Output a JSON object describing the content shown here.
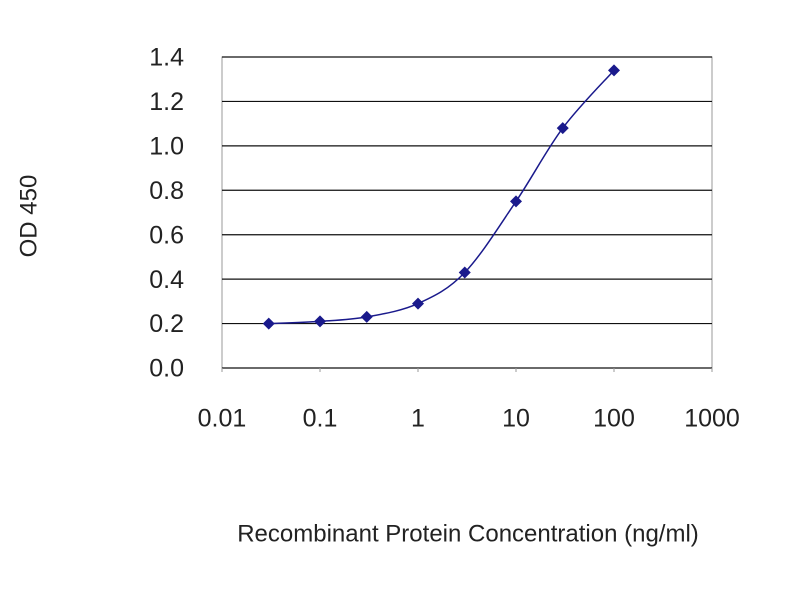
{
  "chart_data": {
    "type": "line",
    "x_label": "Recombinant Protein Concentration (ng/ml)",
    "y_label": "OD 450",
    "x": [
      0.03,
      0.1,
      0.3,
      1,
      3,
      10,
      30,
      100
    ],
    "series": [
      {
        "color": "#1a1a8c",
        "values": [
          0.2,
          0.21,
          0.23,
          0.29,
          0.43,
          0.75,
          1.08,
          1.34
        ]
      }
    ],
    "xscale": "log",
    "xlim": [
      0.01,
      1000
    ],
    "xticks": [
      0.01,
      0.1,
      1,
      10,
      100,
      1000
    ],
    "ylim": [
      0,
      1.4
    ],
    "yticks": [
      {
        "value": 0,
        "label": "0.0"
      },
      0.2,
      0.4,
      0.6,
      0.8,
      {
        "value": 1,
        "label": "1.0"
      },
      1.2,
      1.4
    ],
    "grid": true
  }
}
